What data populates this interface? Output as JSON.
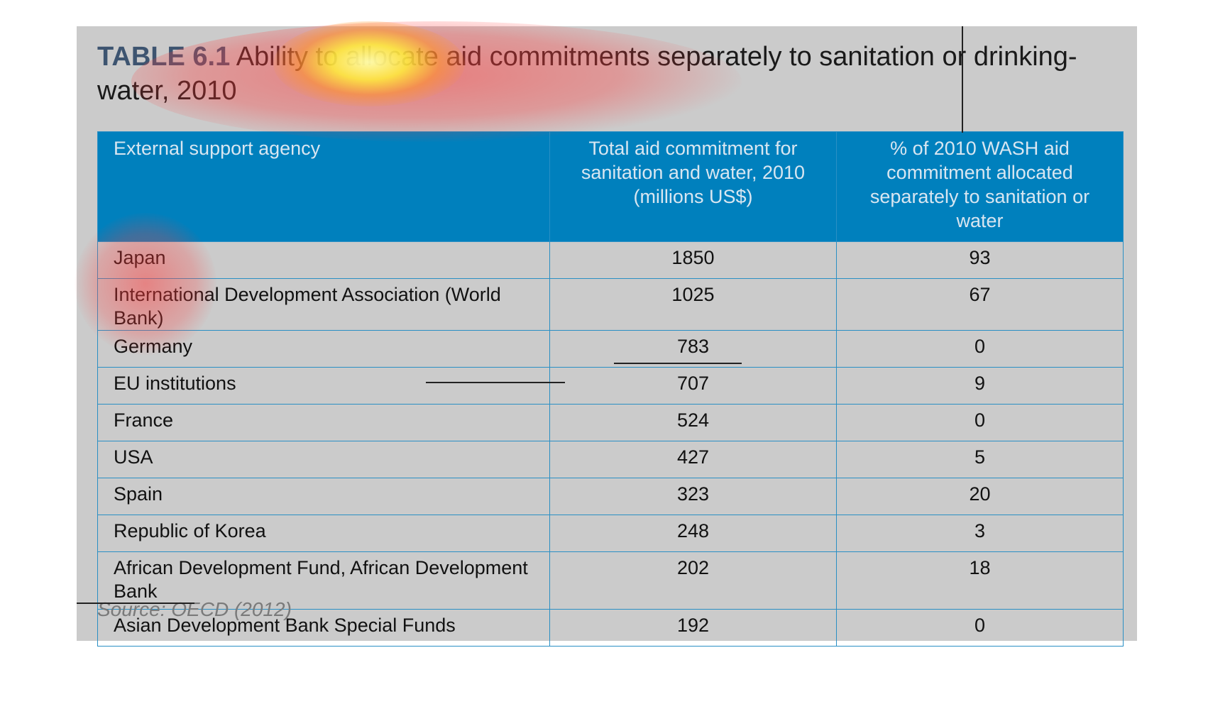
{
  "title": {
    "label": "TABLE 6.1",
    "text": "Ability to allocate aid commitments separately to sanitation or drinking-water, 2010"
  },
  "table": {
    "headers": [
      "External support agency",
      "Total aid commitment for sanitation and water, 2010 (millions US$)",
      "% of 2010 WASH aid commitment allocated separately to sanitation or water"
    ],
    "rows": [
      {
        "agency": "Japan",
        "total": "1850",
        "pct": "93"
      },
      {
        "agency": "International Development Association (World Bank)",
        "total": "1025",
        "pct": "67"
      },
      {
        "agency": "Germany",
        "total": "783",
        "pct": "0"
      },
      {
        "agency": "EU institutions",
        "total": "707",
        "pct": "9"
      },
      {
        "agency": "France",
        "total": "524",
        "pct": "0"
      },
      {
        "agency": "USA",
        "total": "427",
        "pct": "5"
      },
      {
        "agency": "Spain",
        "total": "323",
        "pct": "20"
      },
      {
        "agency": "Republic of Korea",
        "total": "248",
        "pct": "3"
      },
      {
        "agency": "African Development Fund, African Development Bank",
        "total": "202",
        "pct": "18"
      },
      {
        "agency": "Asian Development Bank Special Funds",
        "total": "192",
        "pct": "0"
      }
    ]
  },
  "source": "Source: OECD (2012)",
  "colors": {
    "panel": "#cbcbcb",
    "header": "#0080bd",
    "border": "#2a8fc4",
    "title_label": "#3d5470"
  }
}
